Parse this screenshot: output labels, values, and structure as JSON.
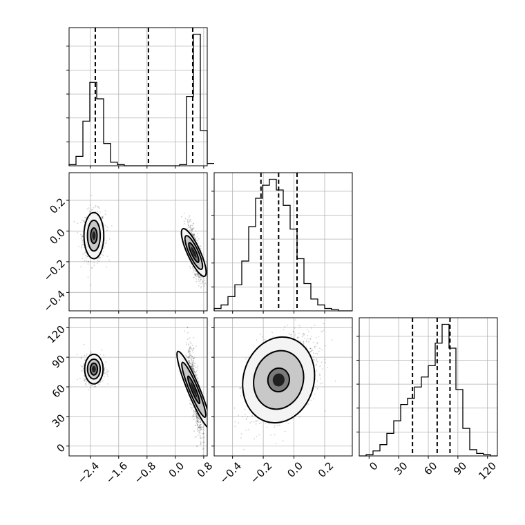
{
  "chart_data": {
    "type": "corner",
    "parameters": [
      {
        "id": "p0",
        "range": [
          -3.0,
          0.9
        ],
        "ticks": [
          -2.4,
          -1.6,
          -0.8,
          0.0,
          0.8
        ],
        "tick_labels": [
          "−2.4",
          "−1.6",
          "−0.8",
          "0.0",
          "0.8"
        ],
        "quantiles": [
          -2.26,
          -0.76,
          0.49
        ],
        "hist": {
          "x_start": -3.0,
          "bin_width": 0.195,
          "counts": [
            1,
            8,
            38,
            71,
            57,
            19,
            3,
            1,
            0,
            0,
            0,
            0,
            0,
            0,
            0,
            0,
            1,
            59,
            112,
            30,
            2
          ]
        }
      },
      {
        "id": "p1",
        "range": [
          -0.52,
          0.38
        ],
        "ticks": [
          -0.4,
          -0.2,
          0.0,
          0.2
        ],
        "tick_labels": [
          "−0.4",
          "−0.2",
          "0.0",
          "0.2"
        ],
        "quantiles": [
          -0.215,
          -0.1,
          0.02
        ],
        "hist": {
          "x_start": -0.52,
          "bin_width": 0.045,
          "counts": [
            2,
            5,
            12,
            22,
            42,
            71,
            95,
            106,
            111,
            102,
            89,
            69,
            44,
            23,
            10,
            5,
            2,
            1,
            0,
            0
          ]
        }
      },
      {
        "id": "p2",
        "range": [
          -10,
          130
        ],
        "ticks": [
          0,
          30,
          60,
          90,
          120
        ],
        "tick_labels": [
          "0",
          "30",
          "60",
          "90",
          "120"
        ],
        "quantiles": [
          44,
          69,
          82
        ],
        "hist": {
          "x_start": -10,
          "bin_width": 7,
          "counts": [
            0,
            1,
            4,
            9,
            18,
            28,
            41,
            46,
            55,
            63,
            72,
            90,
            105,
            86,
            53,
            22,
            5,
            2,
            1,
            0
          ]
        }
      }
    ],
    "scatter_panels": [
      {
        "x_param": 0,
        "y_param": 1,
        "clusters": [
          {
            "cx": -2.3,
            "cy": -0.03,
            "sx": 0.16,
            "sy": 0.08,
            "rho": 0.0,
            "n": 650
          },
          {
            "cx": 0.55,
            "cy": -0.14,
            "sx": 0.1,
            "sy": 0.085,
            "rho": -0.7,
            "n": 850
          }
        ],
        "contours": [
          {
            "cx": -2.3,
            "cy": -0.03,
            "levels": [
              [
                0.28,
                0.15,
                0
              ],
              [
                0.18,
                0.1,
                0
              ],
              [
                0.09,
                0.05,
                0
              ]
            ]
          },
          {
            "cx": 0.52,
            "cy": -0.14,
            "levels": [
              [
                0.18,
                0.17,
                -0.55
              ],
              [
                0.13,
                0.12,
                -0.55
              ],
              [
                0.07,
                0.07,
                -0.55
              ]
            ]
          }
        ]
      },
      {
        "x_param": 0,
        "y_param": 2,
        "clusters": [
          {
            "cx": -2.3,
            "cy": 78,
            "sx": 0.14,
            "sy": 7,
            "rho": 0.0,
            "n": 650
          },
          {
            "cx": 0.55,
            "cy": 55,
            "sx": 0.1,
            "sy": 22,
            "rho": -0.75,
            "n": 850
          }
        ],
        "contours": [
          {
            "cx": -2.3,
            "cy": 78,
            "levels": [
              [
                0.26,
                15,
                0
              ],
              [
                0.18,
                10,
                0
              ],
              [
                0.1,
                6,
                0
              ]
            ]
          },
          {
            "cx": 0.52,
            "cy": 57,
            "levels": [
              [
                0.17,
                42,
                -0.5
              ],
              [
                0.12,
                30,
                -0.5
              ],
              [
                0.06,
                15,
                -0.5
              ]
            ]
          }
        ]
      },
      {
        "x_param": 1,
        "y_param": 2,
        "clusters": [
          {
            "cx": -0.08,
            "cy": 68,
            "sx": 0.11,
            "sy": 21,
            "rho": 0.45,
            "n": 1500
          }
        ],
        "contours": [
          {
            "cx": -0.1,
            "cy": 67,
            "levels": [
              [
                0.23,
                44,
                0.35
              ],
              [
                0.16,
                30,
                0.35
              ],
              [
                0.07,
                12,
                0.2
              ]
            ]
          }
        ]
      }
    ]
  }
}
